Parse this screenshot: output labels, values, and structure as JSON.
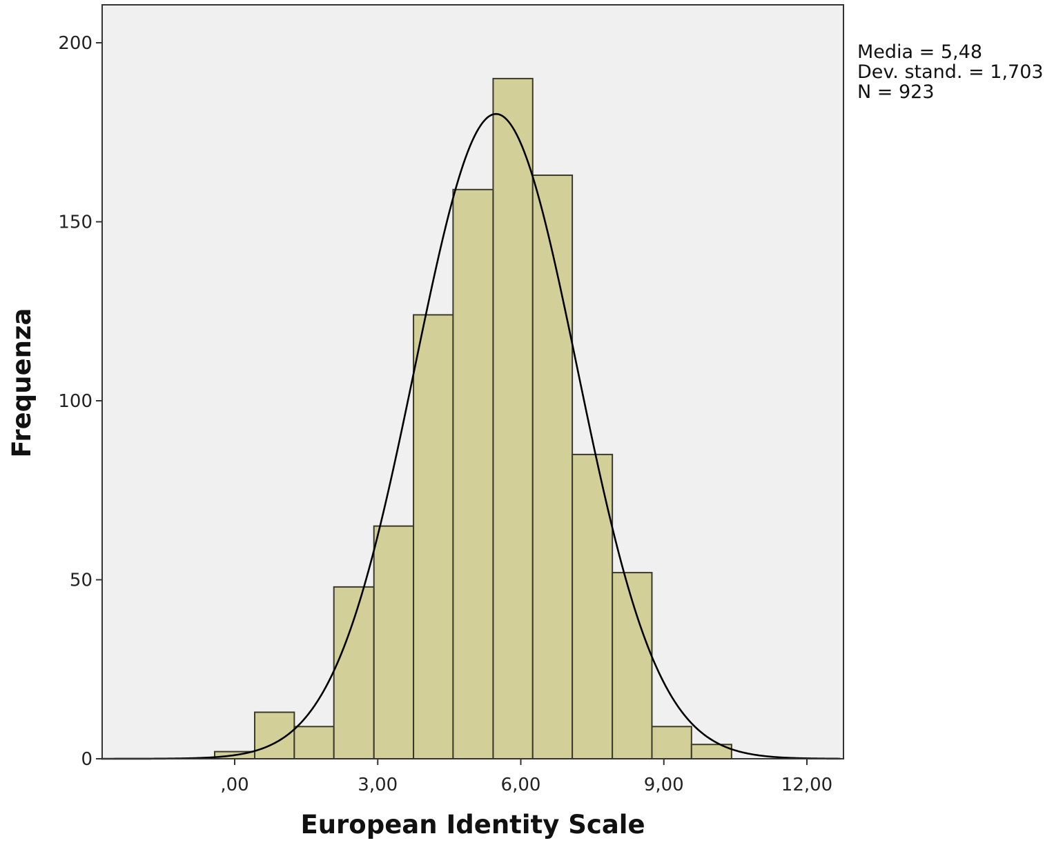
{
  "chart_data": {
    "type": "bar",
    "subtype": "histogram",
    "xlabel": "European Identity Scale",
    "ylabel": "Frequenza",
    "xlim": [
      -2.8,
      12.7
    ],
    "ylim": [
      0,
      210
    ],
    "x_ticks": [
      {
        "value": 0,
        "label": ",00"
      },
      {
        "value": 3,
        "label": "3,00"
      },
      {
        "value": 6,
        "label": "6,00"
      },
      {
        "value": 9,
        "label": "9,00"
      },
      {
        "value": 12,
        "label": "12,00"
      }
    ],
    "y_ticks": [
      {
        "value": 0,
        "label": "0"
      },
      {
        "value": 50,
        "label": "50"
      },
      {
        "value": 100,
        "label": "100"
      },
      {
        "value": 150,
        "label": "150"
      },
      {
        "value": 200,
        "label": "200"
      }
    ],
    "bin_width": 0.833,
    "bins": [
      {
        "start": -0.42,
        "end": 0.42,
        "count": 2
      },
      {
        "start": 0.42,
        "end": 1.25,
        "count": 13
      },
      {
        "start": 1.25,
        "end": 2.08,
        "count": 9
      },
      {
        "start": 2.08,
        "end": 2.92,
        "count": 48
      },
      {
        "start": 2.92,
        "end": 3.75,
        "count": 65
      },
      {
        "start": 3.75,
        "end": 4.58,
        "count": 124
      },
      {
        "start": 4.58,
        "end": 5.42,
        "count": 159
      },
      {
        "start": 5.42,
        "end": 6.25,
        "count": 190
      },
      {
        "start": 6.25,
        "end": 7.08,
        "count": 163
      },
      {
        "start": 7.08,
        "end": 7.92,
        "count": 85
      },
      {
        "start": 7.92,
        "end": 8.75,
        "count": 52
      },
      {
        "start": 8.75,
        "end": 9.58,
        "count": 9
      },
      {
        "start": 9.58,
        "end": 10.42,
        "count": 4
      }
    ],
    "normal_curve": {
      "mean": 5.48,
      "sd": 1.703,
      "n": 923
    },
    "stats_lines": [
      "Media = 5,48",
      "Dev. stand. = 1,703",
      "N = 923"
    ],
    "colors": {
      "plot_background": "#f0f0f0",
      "bar_fill": "#d3cf98",
      "bar_stroke": "#3a3a2a",
      "curve": "#000000"
    },
    "grid": false,
    "legend": "none"
  }
}
